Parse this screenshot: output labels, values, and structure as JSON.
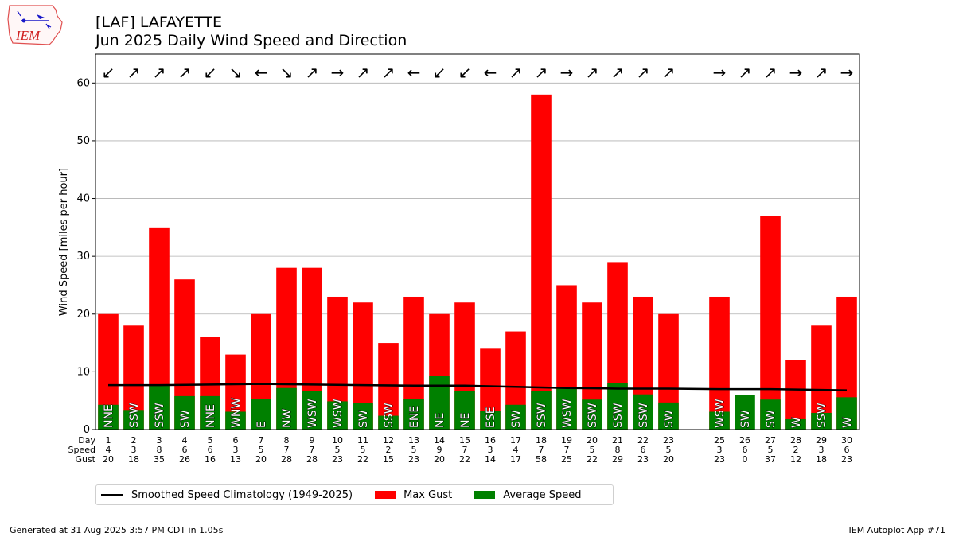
{
  "header": {
    "title_line1": "[LAF] LAFAYETTE",
    "title_line2": "Jun 2025 Daily Wind Speed and Direction"
  },
  "logo": {
    "text": "IEM"
  },
  "footer": {
    "left": "Generated at 31 Aug 2025 3:57 PM CDT in 1.05s",
    "right": "IEM Autoplot App #71"
  },
  "legend": {
    "climo": "Smoothed Speed Climatology (1949-2025)",
    "gust": "Max Gust",
    "avg": "Average Speed"
  },
  "colors": {
    "gust": "#ff0000",
    "avg": "#008000",
    "climo": "#000000",
    "grid": "#b0b0b0"
  },
  "chart_data": {
    "type": "bar",
    "ylabel": "Wind Speed [miles per hour]",
    "ylim": [
      0,
      65
    ],
    "yticks": [
      0,
      10,
      20,
      30,
      40,
      50,
      60
    ],
    "xlim": [
      0.5,
      30.5
    ],
    "grid": "horizontal",
    "legend_position": "bottom",
    "row_labels": [
      "Day",
      "Speed",
      "Gust"
    ],
    "days": [
      {
        "day": 1,
        "speed": 4,
        "gust": 20,
        "avg": 4.3,
        "dir": "NNE",
        "arrow": "↙"
      },
      {
        "day": 2,
        "speed": 3,
        "gust": 18,
        "avg": 3.4,
        "dir": "SSW",
        "arrow": "↗"
      },
      {
        "day": 3,
        "speed": 8,
        "gust": 35,
        "avg": 7.6,
        "dir": "SSW",
        "arrow": "↗"
      },
      {
        "day": 4,
        "speed": 6,
        "gust": 26,
        "avg": 5.8,
        "dir": "SW",
        "arrow": "↗"
      },
      {
        "day": 5,
        "speed": 6,
        "gust": 16,
        "avg": 5.8,
        "dir": "NNE",
        "arrow": "↙"
      },
      {
        "day": 6,
        "speed": 3,
        "gust": 13,
        "avg": 3.1,
        "dir": "WNW",
        "arrow": "↘"
      },
      {
        "day": 7,
        "speed": 5,
        "gust": 20,
        "avg": 5.3,
        "dir": "E",
        "arrow": "←"
      },
      {
        "day": 8,
        "speed": 7,
        "gust": 28,
        "avg": 7.2,
        "dir": "NW",
        "arrow": "↘"
      },
      {
        "day": 9,
        "speed": 7,
        "gust": 28,
        "avg": 6.7,
        "dir": "WSW",
        "arrow": "↗"
      },
      {
        "day": 10,
        "speed": 5,
        "gust": 23,
        "avg": 4.9,
        "dir": "WSW",
        "arrow": "→"
      },
      {
        "day": 11,
        "speed": 5,
        "gust": 22,
        "avg": 4.6,
        "dir": "SW",
        "arrow": "↗"
      },
      {
        "day": 12,
        "speed": 2,
        "gust": 15,
        "avg": 2.4,
        "dir": "SSW",
        "arrow": "↗"
      },
      {
        "day": 13,
        "speed": 5,
        "gust": 23,
        "avg": 5.3,
        "dir": "ENE",
        "arrow": "←"
      },
      {
        "day": 14,
        "speed": 9,
        "gust": 20,
        "avg": 9.3,
        "dir": "NE",
        "arrow": "↙"
      },
      {
        "day": 15,
        "speed": 7,
        "gust": 22,
        "avg": 6.7,
        "dir": "NE",
        "arrow": "↙"
      },
      {
        "day": 16,
        "speed": 3,
        "gust": 14,
        "avg": 3.2,
        "dir": "ESE",
        "arrow": "←"
      },
      {
        "day": 17,
        "speed": 4,
        "gust": 17,
        "avg": 4.3,
        "dir": "SW",
        "arrow": "↗"
      },
      {
        "day": 18,
        "speed": 7,
        "gust": 58,
        "avg": 6.7,
        "dir": "SSW",
        "arrow": "↗"
      },
      {
        "day": 19,
        "speed": 7,
        "gust": 25,
        "avg": 7.2,
        "dir": "WSW",
        "arrow": "→"
      },
      {
        "day": 20,
        "speed": 5,
        "gust": 22,
        "avg": 5.2,
        "dir": "SSW",
        "arrow": "↗"
      },
      {
        "day": 21,
        "speed": 8,
        "gust": 29,
        "avg": 8.0,
        "dir": "SSW",
        "arrow": "↗"
      },
      {
        "day": 22,
        "speed": 6,
        "gust": 23,
        "avg": 6.1,
        "dir": "SSW",
        "arrow": "↗"
      },
      {
        "day": 23,
        "speed": 5,
        "gust": 20,
        "avg": 4.7,
        "dir": "SW",
        "arrow": "↗"
      },
      {
        "day": 25,
        "speed": 3,
        "gust": 23,
        "avg": 3.1,
        "dir": "WSW",
        "arrow": "→"
      },
      {
        "day": 26,
        "speed": 6,
        "gust": 0,
        "avg": 6.0,
        "dir": "SW",
        "arrow": "↗"
      },
      {
        "day": 27,
        "speed": 5,
        "gust": 37,
        "avg": 5.2,
        "dir": "SW",
        "arrow": "↗"
      },
      {
        "day": 28,
        "speed": 2,
        "gust": 12,
        "avg": 1.8,
        "dir": "W",
        "arrow": "→"
      },
      {
        "day": 29,
        "speed": 3,
        "gust": 18,
        "avg": 2.9,
        "dir": "SSW",
        "arrow": "↗"
      },
      {
        "day": 30,
        "speed": 6,
        "gust": 23,
        "avg": 5.6,
        "dir": "W",
        "arrow": "→"
      }
    ],
    "climatology": [
      [
        1,
        7.7
      ],
      [
        3,
        7.7
      ],
      [
        5,
        7.8
      ],
      [
        7,
        7.9
      ],
      [
        9,
        7.8
      ],
      [
        11,
        7.7
      ],
      [
        13,
        7.6
      ],
      [
        15,
        7.6
      ],
      [
        17,
        7.4
      ],
      [
        19,
        7.2
      ],
      [
        21,
        7.1
      ],
      [
        23,
        7.1
      ],
      [
        25,
        7.0
      ],
      [
        27,
        7.0
      ],
      [
        30,
        6.8
      ]
    ]
  }
}
